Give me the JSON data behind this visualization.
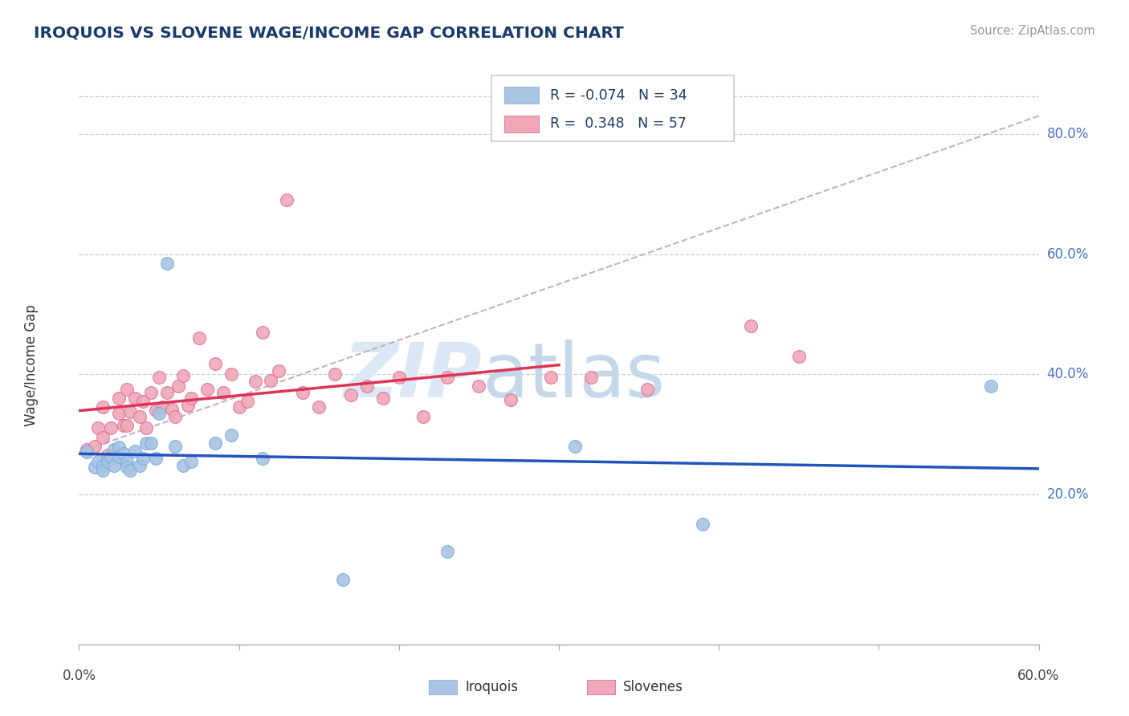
{
  "title": "IROQUOIS VS SLOVENE WAGE/INCOME GAP CORRELATION CHART",
  "source_text": "Source: ZipAtlas.com",
  "ylabel": "Wage/Income Gap",
  "xlim": [
    0.0,
    0.6
  ],
  "ylim": [
    -0.05,
    0.88
  ],
  "y_tick_positions": [
    0.2,
    0.4,
    0.6,
    0.8
  ],
  "y_tick_labels": [
    "20.0%",
    "40.0%",
    "60.0%",
    "80.0%"
  ],
  "x_tick_positions": [
    0.0,
    0.1,
    0.2,
    0.3,
    0.4,
    0.5,
    0.6
  ],
  "iroquois_R": -0.074,
  "iroquois_N": 34,
  "slovene_R": 0.348,
  "slovene_N": 57,
  "iroquois_color": "#a8c4e2",
  "iroquois_edge_color": "#7aabe0",
  "iroquois_line_color": "#2255bb",
  "slovene_color": "#f0a8b8",
  "slovene_edge_color": "#e07090",
  "slovene_line_color": "#dd3355",
  "diag_color": "#d0b0b8",
  "iroquois_x": [
    0.005,
    0.01,
    0.012,
    0.015,
    0.015,
    0.018,
    0.02,
    0.022,
    0.022,
    0.025,
    0.025,
    0.028,
    0.03,
    0.03,
    0.032,
    0.035,
    0.038,
    0.04,
    0.042,
    0.045,
    0.048,
    0.05,
    0.055,
    0.06,
    0.065,
    0.07,
    0.085,
    0.095,
    0.115,
    0.165,
    0.23,
    0.31,
    0.39,
    0.57
  ],
  "iroquois_y": [
    0.27,
    0.245,
    0.255,
    0.248,
    0.24,
    0.255,
    0.262,
    0.275,
    0.248,
    0.278,
    0.262,
    0.268,
    0.255,
    0.245,
    0.24,
    0.272,
    0.248,
    0.26,
    0.285,
    0.285,
    0.26,
    0.335,
    0.585,
    0.28,
    0.248,
    0.255,
    0.285,
    0.298,
    0.26,
    0.058,
    0.105,
    0.28,
    0.15,
    0.38
  ],
  "slovene_x": [
    0.005,
    0.01,
    0.012,
    0.015,
    0.015,
    0.018,
    0.02,
    0.022,
    0.025,
    0.025,
    0.028,
    0.03,
    0.03,
    0.032,
    0.035,
    0.038,
    0.04,
    0.042,
    0.045,
    0.048,
    0.05,
    0.052,
    0.055,
    0.058,
    0.06,
    0.062,
    0.065,
    0.068,
    0.07,
    0.075,
    0.08,
    0.085,
    0.09,
    0.095,
    0.1,
    0.105,
    0.11,
    0.115,
    0.12,
    0.125,
    0.13,
    0.14,
    0.15,
    0.16,
    0.17,
    0.18,
    0.19,
    0.2,
    0.215,
    0.23,
    0.25,
    0.27,
    0.295,
    0.32,
    0.355,
    0.42,
    0.45
  ],
  "slovene_y": [
    0.275,
    0.28,
    0.31,
    0.295,
    0.345,
    0.265,
    0.31,
    0.26,
    0.335,
    0.36,
    0.315,
    0.375,
    0.315,
    0.338,
    0.36,
    0.33,
    0.355,
    0.31,
    0.37,
    0.34,
    0.395,
    0.345,
    0.37,
    0.342,
    0.33,
    0.38,
    0.398,
    0.348,
    0.36,
    0.46,
    0.375,
    0.418,
    0.37,
    0.4,
    0.345,
    0.355,
    0.388,
    0.47,
    0.39,
    0.405,
    0.69,
    0.37,
    0.345,
    0.4,
    0.365,
    0.38,
    0.36,
    0.395,
    0.33,
    0.395,
    0.38,
    0.358,
    0.395,
    0.395,
    0.375,
    0.48,
    0.43
  ]
}
